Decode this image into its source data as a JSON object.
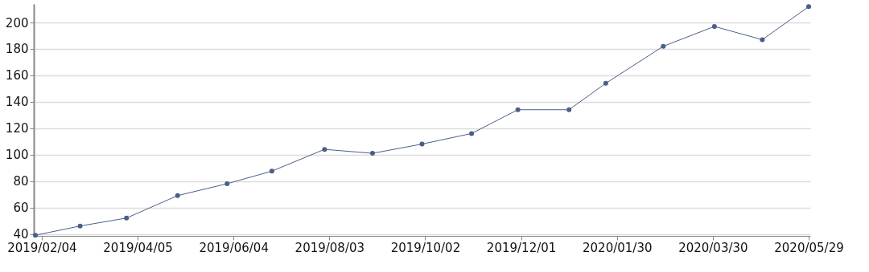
{
  "chart_data": {
    "type": "line",
    "x": [
      "2019-01-31",
      "2019-02-28",
      "2019-03-29",
      "2019-04-30",
      "2019-05-31",
      "2019-06-28",
      "2019-07-31",
      "2019-08-30",
      "2019-09-30",
      "2019-10-31",
      "2019-11-29",
      "2019-12-31",
      "2020-01-23",
      "2020-02-28",
      "2020-03-31",
      "2020-04-30",
      "2020-05-29"
    ],
    "series": [
      {
        "color": "#4a5f88",
        "values": [
          39,
          46,
          52,
          69,
          78,
          87.5,
          104,
          101,
          108,
          116,
          134,
          134,
          154,
          182,
          197,
          187,
          212
        ]
      }
    ],
    "xlim": [
      "2019-01-30",
      "2020-05-30"
    ],
    "xticks": [
      {
        "value": "2019-02-04",
        "label": "2019/02/04"
      },
      {
        "value": "2019-04-05",
        "label": "2019/04/05"
      },
      {
        "value": "2019-06-04",
        "label": "2019/06/04"
      },
      {
        "value": "2019-08-03",
        "label": "2019/08/03"
      },
      {
        "value": "2019-10-02",
        "label": "2019/10/02"
      },
      {
        "value": "2019-12-01",
        "label": "2019/12/01"
      },
      {
        "value": "2020-01-30",
        "label": "2020/01/30"
      },
      {
        "value": "2020-03-30",
        "label": "2020/03/30"
      },
      {
        "value": "2020-05-29",
        "label": "2020/05/29"
      }
    ],
    "ylim": [
      38.5,
      214
    ],
    "yticks": [
      40,
      60,
      80,
      100,
      120,
      140,
      160,
      180,
      200
    ],
    "grid": "y",
    "marker": "circle",
    "line_style": "solid"
  }
}
